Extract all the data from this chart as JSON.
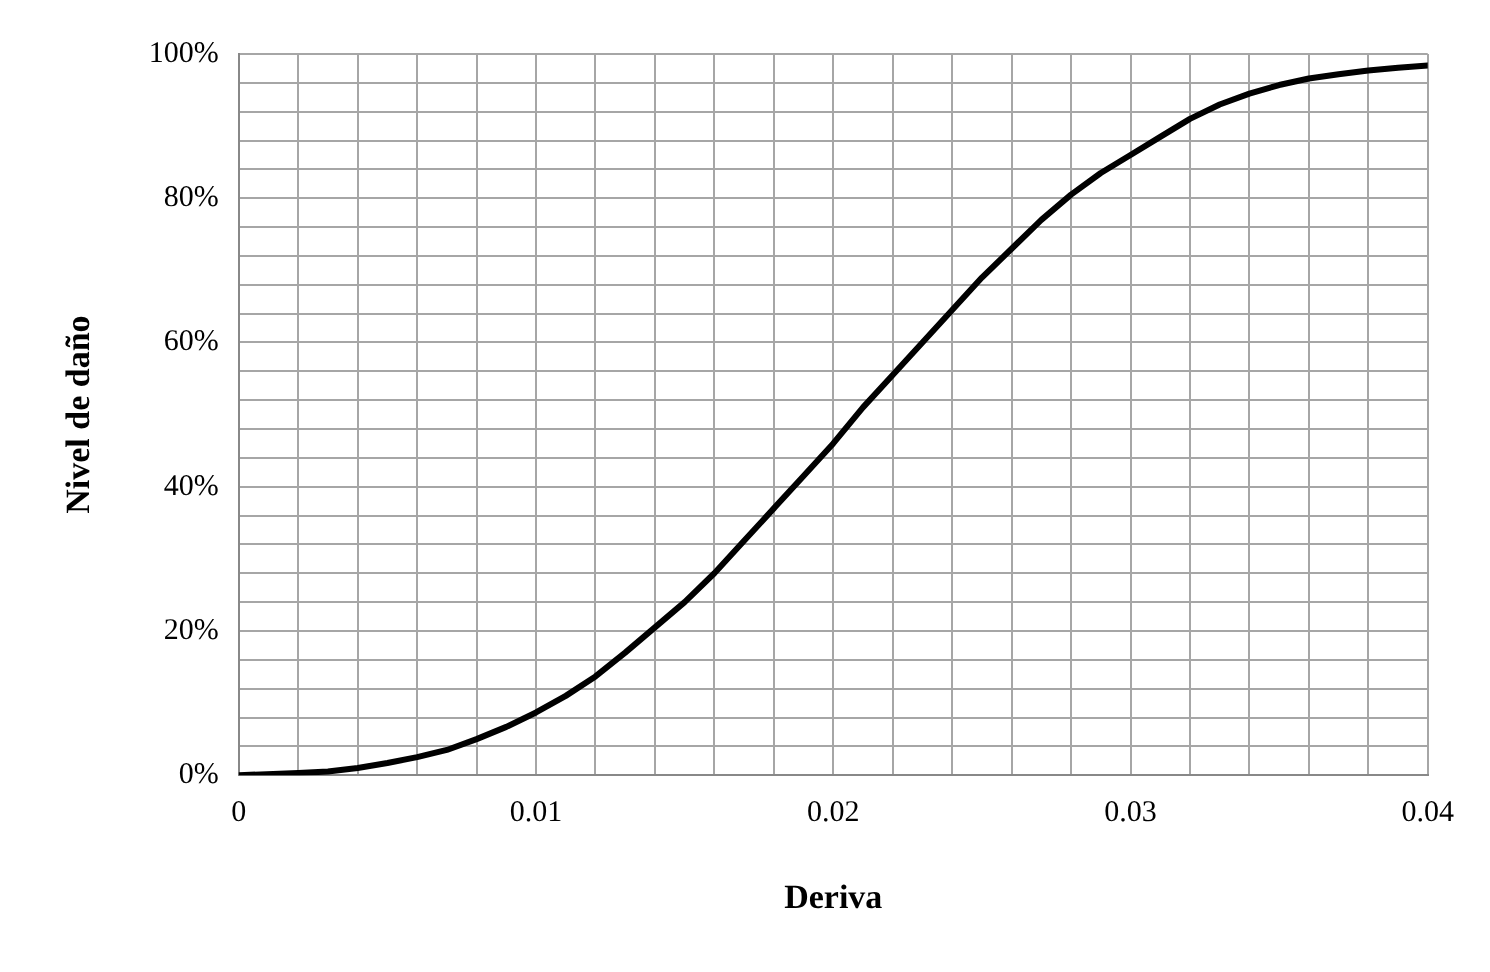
{
  "chart_data": {
    "type": "line",
    "xlabel": "Deriva",
    "ylabel": "Nivel de daño",
    "x": [
      0,
      0.002,
      0.003,
      0.004,
      0.005,
      0.006,
      0.007,
      0.008,
      0.009,
      0.01,
      0.011,
      0.012,
      0.013,
      0.014,
      0.015,
      0.016,
      0.017,
      0.018,
      0.019,
      0.02,
      0.021,
      0.022,
      0.023,
      0.024,
      0.025,
      0.026,
      0.027,
      0.028,
      0.029,
      0.03,
      0.031,
      0.032,
      0.033,
      0.034,
      0.035,
      0.036,
      0.037,
      0.038,
      0.039,
      0.04
    ],
    "series": [
      {
        "color": "#000000",
        "values": [
          0,
          0.3,
          0.5,
          1,
          1.7,
          2.5,
          3.5,
          5,
          6.7,
          8.7,
          11,
          13.7,
          17,
          20.5,
          24,
          28,
          32.5,
          37,
          41.5,
          46,
          51,
          55.5,
          60,
          64.5,
          69,
          73,
          77,
          80.5,
          83.5,
          86,
          88.5,
          91,
          93,
          94.5,
          95.7,
          96.6,
          97.2,
          97.7,
          98.1,
          98.4
        ]
      }
    ],
    "xlim": [
      0,
      0.04
    ],
    "xticks": [
      0,
      {
        "value": 0.002,
        "label": null
      },
      {
        "value": 0.004,
        "label": null
      },
      {
        "value": 0.006,
        "label": null
      },
      {
        "value": 0.008,
        "label": null
      },
      0.01,
      {
        "value": 0.012,
        "label": null
      },
      {
        "value": 0.014,
        "label": null
      },
      {
        "value": 0.016,
        "label": null
      },
      {
        "value": 0.018,
        "label": null
      },
      0.02,
      {
        "value": 0.022,
        "label": null
      },
      {
        "value": 0.024,
        "label": null
      },
      {
        "value": 0.026,
        "label": null
      },
      {
        "value": 0.028,
        "label": null
      },
      0.03,
      {
        "value": 0.032,
        "label": null
      },
      {
        "value": 0.034,
        "label": null
      },
      {
        "value": 0.036,
        "label": null
      },
      {
        "value": 0.038,
        "label": null
      },
      0.04
    ],
    "ylim": [
      0,
      100
    ],
    "yticks": [
      {
        "value": 0,
        "label": "0%"
      },
      {
        "value": 4,
        "label": null
      },
      {
        "value": 8,
        "label": null
      },
      {
        "value": 12,
        "label": null
      },
      {
        "value": 16,
        "label": null
      },
      {
        "value": 20,
        "label": "20%"
      },
      {
        "value": 24,
        "label": null
      },
      {
        "value": 28,
        "label": null
      },
      {
        "value": 32,
        "label": null
      },
      {
        "value": 36,
        "label": null
      },
      {
        "value": 40,
        "label": "40%"
      },
      {
        "value": 44,
        "label": null
      },
      {
        "value": 48,
        "label": null
      },
      {
        "value": 52,
        "label": null
      },
      {
        "value": 56,
        "label": null
      },
      {
        "value": 60,
        "label": "60%"
      },
      {
        "value": 64,
        "label": null
      },
      {
        "value": 68,
        "label": null
      },
      {
        "value": 72,
        "label": null
      },
      {
        "value": 76,
        "label": null
      },
      {
        "value": 80,
        "label": "80%"
      },
      {
        "value": 84,
        "label": null
      },
      {
        "value": 88,
        "label": null
      },
      {
        "value": 92,
        "label": null
      },
      {
        "value": 96,
        "label": null
      },
      {
        "value": 100,
        "label": "100%"
      }
    ],
    "grid": true,
    "legend": false,
    "marker": "none",
    "line_style": "solid"
  }
}
